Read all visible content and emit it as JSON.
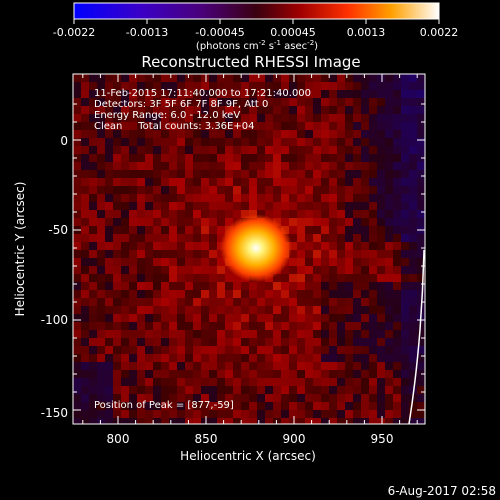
{
  "colorbar": {
    "ticks": [
      "-0.0022",
      "-0.0013",
      "-0.00045",
      "0.00045",
      "0.0013",
      "0.0022"
    ],
    "unit_prefix": "(photons cm",
    "unit_sup1": "-2",
    "unit_mid": " s",
    "unit_sup2": "-1",
    "unit_mid2": " asec",
    "unit_sup3": "-2",
    "unit_suffix": ")",
    "colormap": "rainbow-hot (black-purple-red-orange-yellow-white)"
  },
  "title": "Reconstructed RHESSI Image",
  "annotations": {
    "time_range": "11-Feb-2015 17:11:40.000 to 17:21:40.000",
    "detectors": "Detectors: 3F 5F 6F 7F 8F 9F, Att 0",
    "energy": "Energy Range: 6.0 - 12.0 keV",
    "clean": "Clean     Total counts: 3.36E+04",
    "peak": "Position of Peak = [877,-59]"
  },
  "axes": {
    "xlabel": "Heliocentric X (arcsec)",
    "ylabel": "Heliocentric Y (arcsec)",
    "xticks": [
      "800",
      "850",
      "900",
      "950"
    ],
    "yticks": [
      "0",
      "-50",
      "-100",
      "-150"
    ]
  },
  "footer": {
    "timestamp": "6-Aug-2017 02:58"
  }
}
